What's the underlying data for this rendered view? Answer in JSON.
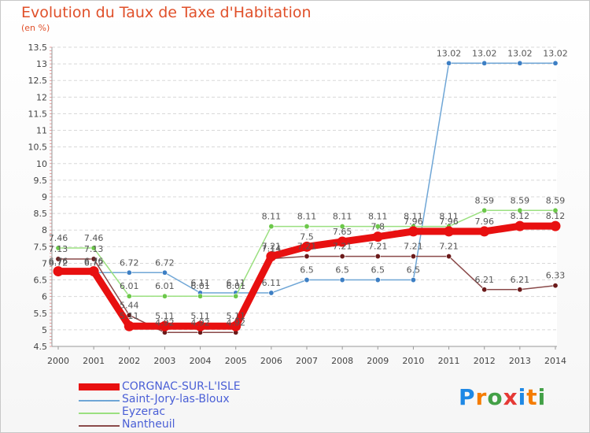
{
  "header": {
    "title": "Evolution du Taux de Taxe d'Habitation",
    "subtitle": "(en %)"
  },
  "logo": {
    "letters": [
      "P",
      "r",
      "o",
      "x",
      "i",
      "t",
      "i"
    ],
    "colors": [
      "#1e88e5",
      "#f57c00",
      "#43a047",
      "#e53935",
      "#1e88e5",
      "#f57c00",
      "#43a047"
    ]
  },
  "chart_data": {
    "type": "line",
    "x": [
      "2000",
      "2001",
      "2002",
      "2003",
      "2004",
      "2005",
      "2006",
      "2007",
      "2008",
      "2009",
      "2010",
      "2011",
      "2012",
      "2013",
      "2014"
    ],
    "ylim": [
      4.5,
      13.5
    ],
    "yticks": [
      "4.5",
      "5",
      "5.5",
      "6",
      "6.5",
      "7",
      "7.5",
      "8",
      "8.5",
      "9",
      "9.5",
      "10",
      "10.5",
      "11",
      "11.5",
      "12",
      "12.5",
      "13",
      "13.5"
    ],
    "grid": "horizontal",
    "legend_position": "bottom-left",
    "series": [
      {
        "name": "CORGNAC-SUR-L'ISLE",
        "color": "#e81010",
        "marker": "#e81010",
        "values": [
          6.76,
          6.76,
          5.11,
          5.11,
          5.11,
          5.11,
          7.21,
          7.5,
          7.65,
          7.8,
          7.96,
          7.96,
          7.96,
          8.12,
          8.12
        ],
        "labels": [
          "6.76",
          "6.76",
          "5.11",
          "5.11",
          "5.11",
          "5.11",
          "7.21",
          "7.5",
          "7.65",
          "7.8",
          "7.96",
          "7.96",
          "7.96",
          "8.12",
          "8.12"
        ]
      },
      {
        "name": "Saint-Jory-las-Bloux",
        "color": "#6fa6d6",
        "marker": "#3d7fc4",
        "values": [
          6.72,
          6.72,
          6.72,
          6.72,
          6.11,
          6.11,
          6.11,
          6.5,
          6.5,
          6.5,
          6.5,
          13.02,
          13.02,
          13.02,
          13.02
        ],
        "labels": [
          "6.72",
          "6.72",
          "6.72",
          "6.72",
          "6.11",
          "6.11",
          "6.11",
          "6.5",
          "6.5",
          "6.5",
          "6.5",
          "13.02",
          "13.02",
          "13.02",
          "13.02"
        ]
      },
      {
        "name": "Eyzerac",
        "color": "#9be080",
        "marker": "#6cc84a",
        "values": [
          7.46,
          7.46,
          6.01,
          6.01,
          6.01,
          6.01,
          8.11,
          8.11,
          8.11,
          8.11,
          8.11,
          8.11,
          8.59,
          8.59,
          8.59
        ],
        "labels": [
          "7.46",
          "7.46",
          "6.01",
          "6.01",
          "6.01",
          "6.01",
          "8.11",
          "8.11",
          "8.11",
          "8.11",
          "8.11",
          "8.11",
          "8.59",
          "8.59",
          "8.59"
        ]
      },
      {
        "name": "Nantheuil",
        "color": "#8a4a4a",
        "marker": "#6b1a1a",
        "values": [
          7.13,
          7.13,
          5.44,
          4.92,
          4.92,
          4.92,
          7.14,
          7.21,
          7.21,
          7.21,
          7.21,
          7.21,
          6.21,
          6.21,
          6.33
        ],
        "labels": [
          "7.13",
          "7.13",
          "5.44",
          "4.92",
          "4.92",
          "4.92",
          "7.14",
          "7.21",
          "7.21",
          "7.21",
          "7.21",
          "7.21",
          "6.21",
          "6.21",
          "6.33"
        ]
      }
    ]
  }
}
